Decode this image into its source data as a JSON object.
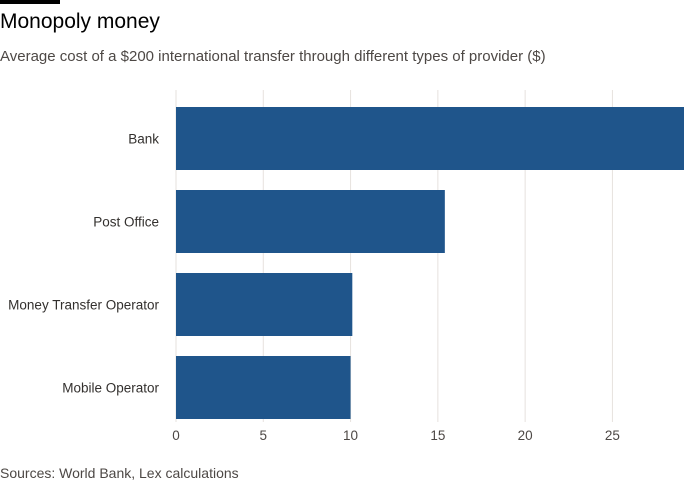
{
  "header": {
    "title": "Monopoly money",
    "subtitle": "Average cost of a $200 international transfer through different types of provider ($)"
  },
  "footer": {
    "source": "Sources: World Bank, Lex calculations"
  },
  "colors": {
    "bar": "#1f558b",
    "grid": "#e6e2de",
    "rule": "#000000"
  },
  "chart_data": {
    "type": "bar",
    "orientation": "horizontal",
    "title": "Monopoly money",
    "subtitle": "Average cost of a $200 international transfer through different types of provider ($)",
    "categories": [
      "Bank",
      "Post Office",
      "Money Transfer Operator",
      "Mobile Operator"
    ],
    "values": [
      29.1,
      15.4,
      10.1,
      10.0
    ],
    "xlim": [
      0,
      29.1
    ],
    "xticks": [
      0,
      5,
      10,
      15,
      20,
      25
    ],
    "xlabel": "",
    "ylabel": "",
    "grid": true
  }
}
